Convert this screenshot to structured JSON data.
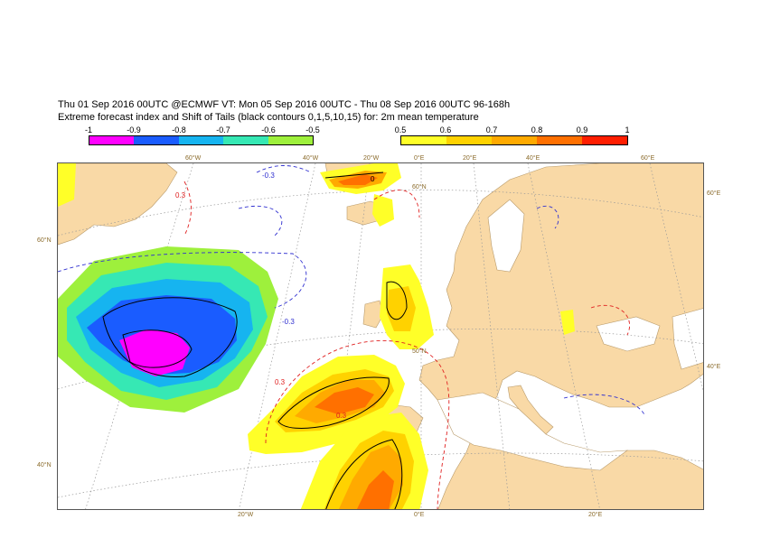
{
  "header": {
    "title_line1": "Thu 01 Sep 2016 00UTC @ECMWF VT: Mon 05 Sep 2016 00UTC - Thu 08 Sep 2016 00UTC  96-168h",
    "title_line2": "Extreme forecast index and Shift of Tails (black contours 0,1,5,10,15) for: 2m mean temperature"
  },
  "colorbar_negative": {
    "ticks": [
      "-1",
      "-0.9",
      "-0.8",
      "-0.7",
      "-0.6",
      "-0.5"
    ],
    "colors": [
      "#ff00ff",
      "#1a5cff",
      "#16b4f0",
      "#36e8b4",
      "#9ef03c"
    ]
  },
  "colorbar_positive": {
    "ticks": [
      "0.5",
      "0.6",
      "0.7",
      "0.8",
      "0.9",
      "1"
    ],
    "colors": [
      "#ffff28",
      "#ffd200",
      "#ffaa00",
      "#ff7000",
      "#ff1e00"
    ]
  },
  "map": {
    "land_color": "#f9d9a6",
    "sea_color": "#ffffff",
    "lon_labels_top": [
      "60°W",
      "40°W",
      "20°W",
      "0°E",
      "20°E",
      "40°E",
      "60°E"
    ],
    "lon_labels_bottom": [
      "20°W",
      "0°E",
      "20°E"
    ],
    "lat_labels_left": [
      "60°N",
      "40°N"
    ],
    "lat_labels_right": [
      "60°E",
      "40°E"
    ],
    "inner_lat_labels": [
      "60°N",
      "50°N"
    ],
    "contour_labels": [
      "-0.3",
      "0.3",
      "0"
    ]
  }
}
